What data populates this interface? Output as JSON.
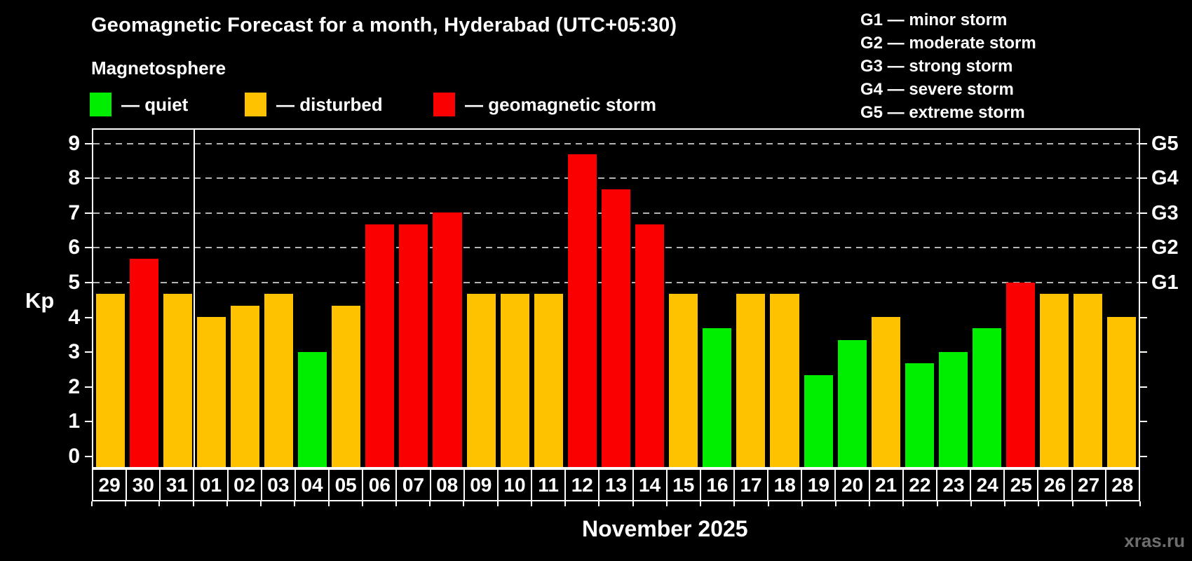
{
  "title": "Geomagnetic Forecast for a month, Hyderabad (UTC+05:30)",
  "subtitle": "Magnetosphere",
  "legend": {
    "items": [
      {
        "key": "quiet",
        "label": "— quiet"
      },
      {
        "key": "disturbed",
        "label": "— disturbed"
      },
      {
        "key": "storm",
        "label": "— geomagnetic storm"
      }
    ]
  },
  "g_scale_legend": [
    "G1 — minor storm",
    "G2 — moderate storm",
    "G3 — strong storm",
    "G4 — severe storm",
    "G5 — extreme storm"
  ],
  "watermark": "xras.ru",
  "colors": {
    "background": "#000000",
    "quiet": "#00ee00",
    "disturbed": "#ffc200",
    "storm": "#fb0000",
    "frame": "#ffffff",
    "grid": "#b3b3b3",
    "watermark": "#6e6e6e"
  },
  "chart_data": {
    "type": "bar",
    "title": "Geomagnetic Forecast for a month, Hyderabad (UTC+05:30)",
    "subtitle": "Magnetosphere",
    "xlabel": "November 2025",
    "ylabel": "Kp",
    "ylim": [
      0,
      9
    ],
    "y_ticks": [
      0,
      1,
      2,
      3,
      4,
      5,
      6,
      7,
      8,
      9
    ],
    "gridline_levels": [
      5,
      6,
      7,
      8,
      9
    ],
    "grid": "horizontal dashed lines at Kp 5-9 only",
    "legend_position": "top-left",
    "right_axis_labels": [
      {
        "kp": 5,
        "label": "G1"
      },
      {
        "kp": 6,
        "label": "G2"
      },
      {
        "kp": 7,
        "label": "G3"
      },
      {
        "kp": 8,
        "label": "G4"
      },
      {
        "kp": 9,
        "label": "G5"
      }
    ],
    "month_boundary_after_index": 2,
    "categories": [
      "29",
      "30",
      "31",
      "01",
      "02",
      "03",
      "04",
      "05",
      "06",
      "07",
      "08",
      "09",
      "10",
      "11",
      "12",
      "13",
      "14",
      "15",
      "16",
      "17",
      "18",
      "19",
      "20",
      "21",
      "22",
      "23",
      "24",
      "25",
      "26",
      "27",
      "28"
    ],
    "values": [
      4.67,
      5.67,
      4.67,
      4.0,
      4.33,
      4.67,
      3.0,
      4.33,
      6.67,
      6.67,
      7.0,
      4.67,
      4.67,
      4.67,
      8.67,
      7.67,
      6.67,
      4.67,
      3.67,
      4.67,
      4.67,
      2.33,
      3.33,
      4.0,
      2.67,
      3.0,
      3.67,
      5.0,
      4.67,
      4.67,
      4.0
    ],
    "statuses": [
      "disturbed",
      "storm",
      "disturbed",
      "disturbed",
      "disturbed",
      "disturbed",
      "quiet",
      "disturbed",
      "storm",
      "storm",
      "storm",
      "disturbed",
      "disturbed",
      "disturbed",
      "storm",
      "storm",
      "storm",
      "disturbed",
      "quiet",
      "disturbed",
      "disturbed",
      "quiet",
      "quiet",
      "disturbed",
      "quiet",
      "quiet",
      "quiet",
      "storm",
      "disturbed",
      "disturbed",
      "disturbed"
    ]
  }
}
